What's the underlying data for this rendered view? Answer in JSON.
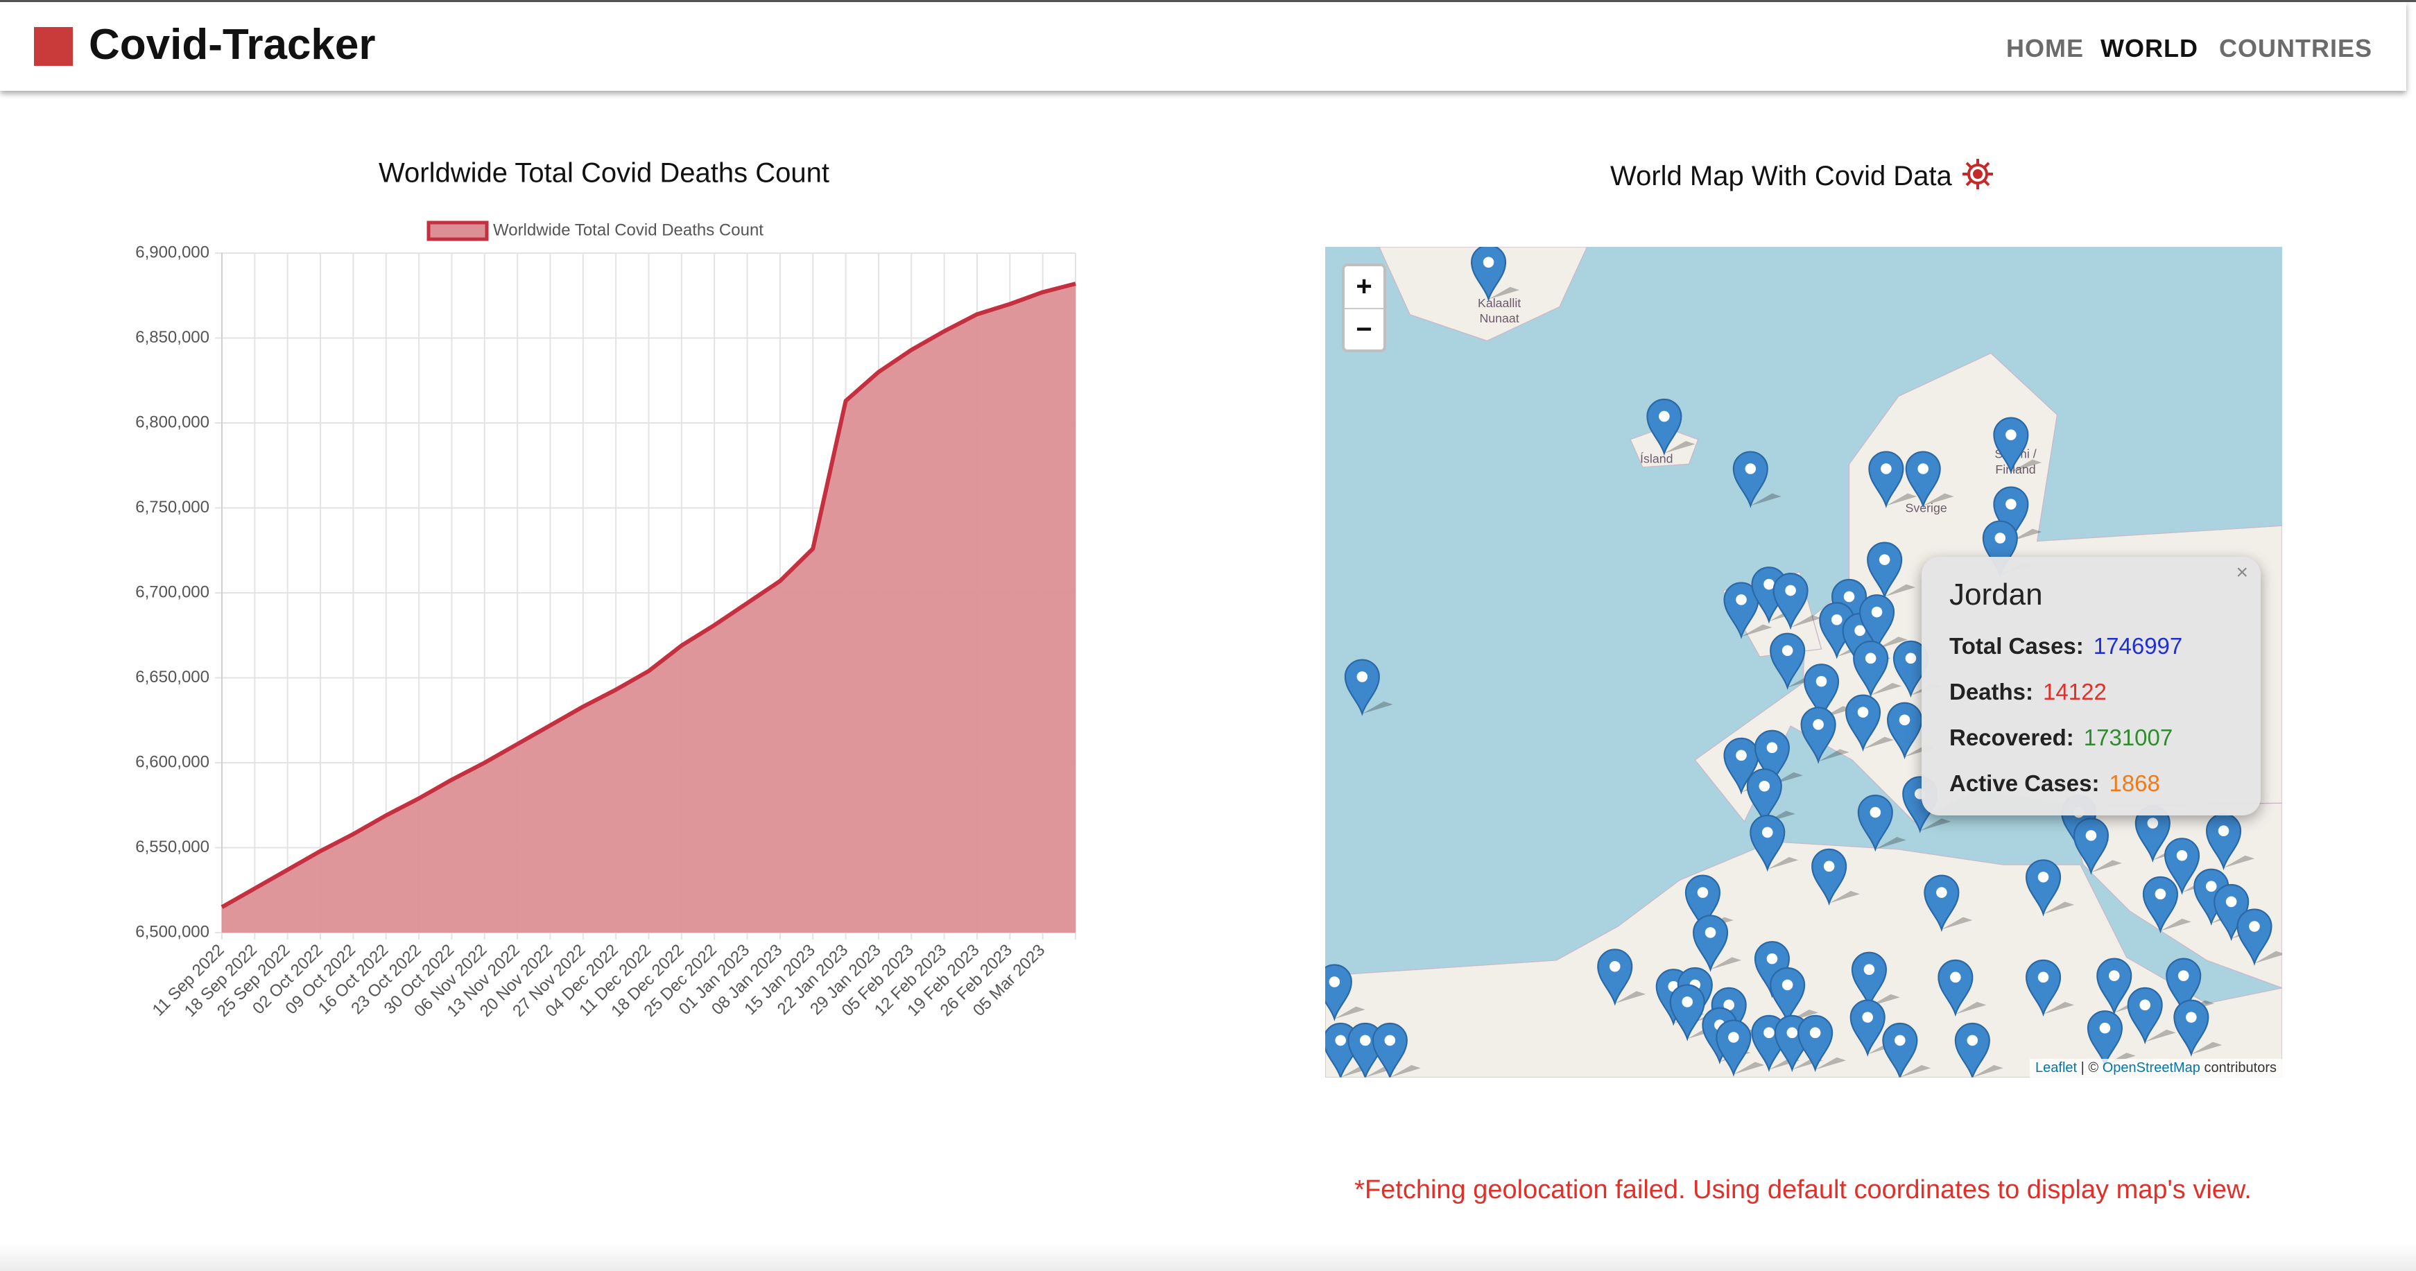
{
  "header": {
    "title": "Covid-Tracker",
    "nav": [
      "HOME",
      "WORLD",
      "COUNTRIES"
    ]
  },
  "chart_data": {
    "type": "line",
    "title": "Worldwide Total Covid Deaths Count",
    "categories": [
      "11 Sep 2022",
      "18 Sep 2022",
      "25 Sep 2022",
      "02 Oct 2022",
      "09 Oct 2022",
      "16 Oct 2022",
      "23 Oct 2022",
      "30 Oct 2022",
      "06 Nov 2022",
      "13 Nov 2022",
      "20 Nov 2022",
      "27 Nov 2022",
      "04 Dec 2022",
      "11 Dec 2022",
      "18 Dec 2022",
      "25 Dec 2022",
      "01 Jan 2023",
      "08 Jan 2023",
      "15 Jan 2023",
      "22 Jan 2023",
      "29 Jan 2023",
      "05 Feb 2023",
      "12 Feb 2023",
      "19 Feb 2023",
      "26 Feb 2023",
      "05 Mar 2023",
      null
    ],
    "series": [
      {
        "name": "Worldwide Total Covid Deaths Count",
        "color": "#c4303f",
        "fill": "#dc9096",
        "values": [
          6515000,
          6526000,
          6537000,
          6548000,
          6558000,
          6569000,
          6579000,
          6590000,
          6600000,
          6611000,
          6622000,
          6633000,
          6643000,
          6654000,
          6669000,
          6681000,
          6694000,
          6707000,
          6726000,
          6813000,
          6830000,
          6843000,
          6854000,
          6864000,
          6870000,
          6877000,
          6882000
        ]
      }
    ],
    "ylim": [
      6500000,
      6900000
    ],
    "yticks": [
      {
        "value": 6500000,
        "label": "6,500,000"
      },
      {
        "value": 6550000,
        "label": "6,550,000"
      },
      {
        "value": 6600000,
        "label": "6,600,000"
      },
      {
        "value": 6650000,
        "label": "6,650,000"
      },
      {
        "value": 6700000,
        "label": "6,700,000"
      },
      {
        "value": 6750000,
        "label": "6,750,000"
      },
      {
        "value": 6800000,
        "label": "6,800,000"
      },
      {
        "value": 6850000,
        "label": "6,850,000"
      },
      {
        "value": 6900000,
        "label": "6,900,000"
      }
    ],
    "grid": true,
    "legend": "top"
  },
  "map": {
    "title": "World Map With Covid Data",
    "zoom_in": "+",
    "zoom_out": "−",
    "place_labels": [
      "Kalaallit",
      "Nunaat",
      "Ísland",
      "Sverige",
      "Suomi /",
      "Finland"
    ],
    "popup": {
      "country": "Jordan",
      "close": "×",
      "rows": [
        {
          "label": "Total Cases:",
          "value": 1746997,
          "color": "#1f2fd6"
        },
        {
          "label": "Deaths:",
          "value": 14122,
          "color": "#e0302a"
        },
        {
          "label": "Recovered:",
          "value": 1731007,
          "color": "#2e8b2e"
        },
        {
          "label": "Active Cases:",
          "value": 1868,
          "color": "#f07a1a"
        }
      ]
    },
    "attribution": {
      "leaflet": "Leaflet",
      "copyright": "| ©",
      "osm": "OpenStreetMap",
      "contributors": "contributors"
    }
  },
  "message": "*Fetching geolocation failed. Using default coordinates to display map's view."
}
